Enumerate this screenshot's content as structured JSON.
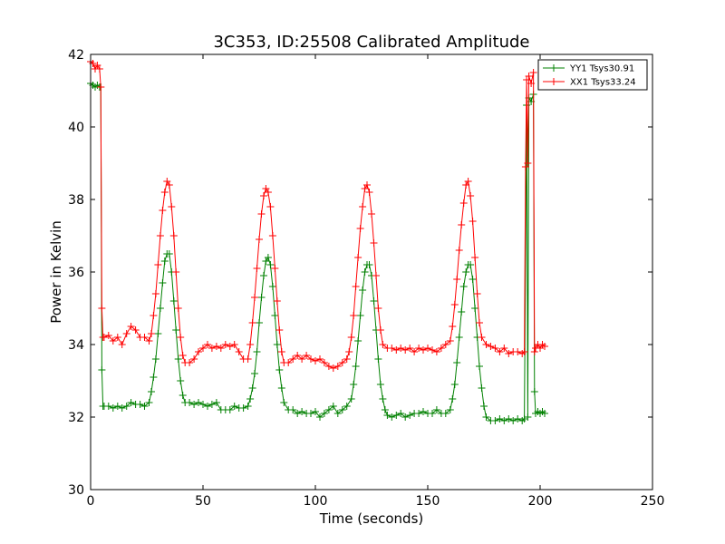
{
  "chart_data": {
    "type": "line",
    "title": "3C353, ID:25508 Calibrated Amplitude",
    "xlabel": "Time (seconds)",
    "ylabel": "Power in Kelvin",
    "xlim": [
      0,
      250
    ],
    "ylim": [
      30,
      42
    ],
    "xticks": [
      "0",
      "50",
      "100",
      "150",
      "200",
      "250"
    ],
    "yticks": [
      "30",
      "32",
      "34",
      "36",
      "38",
      "40",
      "42"
    ],
    "grid": false,
    "legend_position": "top-right",
    "marker": "+",
    "series": [
      {
        "name": "YY1 Tsys30.91",
        "color": "#008000",
        "points": [
          [
            0,
            41.2
          ],
          [
            1,
            41.15
          ],
          [
            2,
            41.1
          ],
          [
            3,
            41.15
          ],
          [
            4,
            41.1
          ],
          [
            4.5,
            41.1
          ],
          [
            5,
            33.3
          ],
          [
            5.5,
            32.3
          ],
          [
            6,
            32.3
          ],
          [
            8,
            32.3
          ],
          [
            10,
            32.25
          ],
          [
            12,
            32.3
          ],
          [
            14,
            32.25
          ],
          [
            16,
            32.3
          ],
          [
            18,
            32.4
          ],
          [
            20,
            32.35
          ],
          [
            22,
            32.35
          ],
          [
            24,
            32.3
          ],
          [
            26,
            32.4
          ],
          [
            27,
            32.7
          ],
          [
            28,
            33.1
          ],
          [
            29,
            33.6
          ],
          [
            30,
            34.3
          ],
          [
            31,
            35.0
          ],
          [
            32,
            35.7
          ],
          [
            33,
            36.3
          ],
          [
            34,
            36.5
          ],
          [
            35,
            36.5
          ],
          [
            36,
            36.0
          ],
          [
            37,
            35.2
          ],
          [
            38,
            34.4
          ],
          [
            39,
            33.6
          ],
          [
            40,
            33.0
          ],
          [
            41,
            32.6
          ],
          [
            42,
            32.4
          ],
          [
            44,
            32.4
          ],
          [
            46,
            32.35
          ],
          [
            48,
            32.4
          ],
          [
            50,
            32.35
          ],
          [
            52,
            32.3
          ],
          [
            54,
            32.35
          ],
          [
            56,
            32.4
          ],
          [
            58,
            32.2
          ],
          [
            60,
            32.2
          ],
          [
            62,
            32.2
          ],
          [
            64,
            32.3
          ],
          [
            66,
            32.25
          ],
          [
            68,
            32.25
          ],
          [
            70,
            32.3
          ],
          [
            71,
            32.5
          ],
          [
            72,
            32.8
          ],
          [
            73,
            33.2
          ],
          [
            74,
            33.8
          ],
          [
            75,
            34.6
          ],
          [
            76,
            35.3
          ],
          [
            77,
            35.9
          ],
          [
            78,
            36.3
          ],
          [
            79,
            36.4
          ],
          [
            80,
            36.2
          ],
          [
            81,
            35.6
          ],
          [
            82,
            34.8
          ],
          [
            83,
            34.0
          ],
          [
            84,
            33.3
          ],
          [
            85,
            32.8
          ],
          [
            86,
            32.4
          ],
          [
            88,
            32.2
          ],
          [
            90,
            32.2
          ],
          [
            92,
            32.1
          ],
          [
            94,
            32.15
          ],
          [
            96,
            32.1
          ],
          [
            98,
            32.1
          ],
          [
            100,
            32.15
          ],
          [
            102,
            32.0
          ],
          [
            104,
            32.1
          ],
          [
            106,
            32.2
          ],
          [
            108,
            32.3
          ],
          [
            110,
            32.1
          ],
          [
            112,
            32.2
          ],
          [
            114,
            32.3
          ],
          [
            116,
            32.5
          ],
          [
            117,
            32.9
          ],
          [
            118,
            33.4
          ],
          [
            119,
            34.1
          ],
          [
            120,
            34.8
          ],
          [
            121,
            35.5
          ],
          [
            122,
            36.0
          ],
          [
            123,
            36.2
          ],
          [
            124,
            36.2
          ],
          [
            125,
            35.9
          ],
          [
            126,
            35.2
          ],
          [
            127,
            34.4
          ],
          [
            128,
            33.6
          ],
          [
            129,
            32.9
          ],
          [
            130,
            32.5
          ],
          [
            131,
            32.2
          ],
          [
            132,
            32.05
          ],
          [
            134,
            32.0
          ],
          [
            136,
            32.05
          ],
          [
            138,
            32.1
          ],
          [
            140,
            32.0
          ],
          [
            142,
            32.05
          ],
          [
            144,
            32.1
          ],
          [
            146,
            32.1
          ],
          [
            148,
            32.15
          ],
          [
            150,
            32.1
          ],
          [
            152,
            32.1
          ],
          [
            154,
            32.2
          ],
          [
            156,
            32.1
          ],
          [
            158,
            32.1
          ],
          [
            160,
            32.2
          ],
          [
            161,
            32.5
          ],
          [
            162,
            32.9
          ],
          [
            163,
            33.5
          ],
          [
            164,
            34.2
          ],
          [
            165,
            34.9
          ],
          [
            166,
            35.6
          ],
          [
            167,
            36.0
          ],
          [
            168,
            36.2
          ],
          [
            169,
            36.2
          ],
          [
            170,
            35.8
          ],
          [
            171,
            35.0
          ],
          [
            172,
            34.2
          ],
          [
            173,
            33.4
          ],
          [
            174,
            32.8
          ],
          [
            175,
            32.3
          ],
          [
            176,
            32.0
          ],
          [
            178,
            31.9
          ],
          [
            180,
            31.9
          ],
          [
            182,
            31.95
          ],
          [
            184,
            31.9
          ],
          [
            186,
            31.95
          ],
          [
            188,
            31.9
          ],
          [
            190,
            31.95
          ],
          [
            192,
            31.9
          ],
          [
            193,
            31.95
          ],
          [
            194,
            40.6
          ],
          [
            194.5,
            32.0
          ],
          [
            195,
            40.8
          ],
          [
            196,
            40.7
          ],
          [
            197,
            40.9
          ],
          [
            197.5,
            32.7
          ],
          [
            198,
            32.1
          ],
          [
            199,
            32.15
          ],
          [
            200,
            32.1
          ],
          [
            201,
            32.15
          ],
          [
            202,
            32.1
          ]
        ]
      },
      {
        "name": "XX1 Tsys33.24",
        "color": "#ff0000",
        "points": [
          [
            0,
            41.8
          ],
          [
            1,
            41.75
          ],
          [
            2,
            41.6
          ],
          [
            3,
            41.7
          ],
          [
            4,
            41.6
          ],
          [
            4.5,
            41.1
          ],
          [
            5,
            35.0
          ],
          [
            5.5,
            34.2
          ],
          [
            6,
            34.2
          ],
          [
            8,
            34.25
          ],
          [
            10,
            34.1
          ],
          [
            12,
            34.2
          ],
          [
            14,
            34.0
          ],
          [
            16,
            34.3
          ],
          [
            18,
            34.5
          ],
          [
            20,
            34.4
          ],
          [
            22,
            34.2
          ],
          [
            24,
            34.2
          ],
          [
            26,
            34.1
          ],
          [
            27,
            34.3
          ],
          [
            28,
            34.8
          ],
          [
            29,
            35.4
          ],
          [
            30,
            36.2
          ],
          [
            31,
            37.0
          ],
          [
            32,
            37.7
          ],
          [
            33,
            38.2
          ],
          [
            34,
            38.5
          ],
          [
            35,
            38.4
          ],
          [
            36,
            37.8
          ],
          [
            37,
            37.0
          ],
          [
            38,
            36.0
          ],
          [
            39,
            35.0
          ],
          [
            40,
            34.2
          ],
          [
            41,
            33.7
          ],
          [
            42,
            33.5
          ],
          [
            44,
            33.5
          ],
          [
            46,
            33.6
          ],
          [
            48,
            33.8
          ],
          [
            50,
            33.9
          ],
          [
            52,
            34.0
          ],
          [
            54,
            33.9
          ],
          [
            56,
            33.95
          ],
          [
            58,
            33.9
          ],
          [
            60,
            34.0
          ],
          [
            62,
            33.95
          ],
          [
            64,
            34.0
          ],
          [
            66,
            33.8
          ],
          [
            68,
            33.6
          ],
          [
            70,
            33.6
          ],
          [
            71,
            34.0
          ],
          [
            72,
            34.6
          ],
          [
            73,
            35.3
          ],
          [
            74,
            36.1
          ],
          [
            75,
            36.9
          ],
          [
            76,
            37.6
          ],
          [
            77,
            38.1
          ],
          [
            78,
            38.3
          ],
          [
            79,
            38.2
          ],
          [
            80,
            37.8
          ],
          [
            81,
            37.0
          ],
          [
            82,
            36.1
          ],
          [
            83,
            35.2
          ],
          [
            84,
            34.4
          ],
          [
            85,
            33.8
          ],
          [
            86,
            33.5
          ],
          [
            88,
            33.5
          ],
          [
            90,
            33.6
          ],
          [
            92,
            33.7
          ],
          [
            94,
            33.6
          ],
          [
            96,
            33.7
          ],
          [
            98,
            33.6
          ],
          [
            100,
            33.55
          ],
          [
            102,
            33.6
          ],
          [
            104,
            33.5
          ],
          [
            106,
            33.4
          ],
          [
            108,
            33.35
          ],
          [
            110,
            33.4
          ],
          [
            112,
            33.5
          ],
          [
            114,
            33.6
          ],
          [
            115,
            33.8
          ],
          [
            116,
            34.2
          ],
          [
            117,
            34.8
          ],
          [
            118,
            35.6
          ],
          [
            119,
            36.4
          ],
          [
            120,
            37.2
          ],
          [
            121,
            37.8
          ],
          [
            122,
            38.3
          ],
          [
            123,
            38.4
          ],
          [
            124,
            38.2
          ],
          [
            125,
            37.6
          ],
          [
            126,
            36.8
          ],
          [
            127,
            35.9
          ],
          [
            128,
            35.0
          ],
          [
            129,
            34.4
          ],
          [
            130,
            34.0
          ],
          [
            132,
            33.9
          ],
          [
            134,
            33.9
          ],
          [
            136,
            33.85
          ],
          [
            138,
            33.9
          ],
          [
            140,
            33.85
          ],
          [
            142,
            33.9
          ],
          [
            144,
            33.8
          ],
          [
            146,
            33.9
          ],
          [
            148,
            33.85
          ],
          [
            150,
            33.9
          ],
          [
            152,
            33.85
          ],
          [
            154,
            33.8
          ],
          [
            156,
            33.9
          ],
          [
            158,
            34.0
          ],
          [
            160,
            34.1
          ],
          [
            161,
            34.5
          ],
          [
            162,
            35.1
          ],
          [
            163,
            35.8
          ],
          [
            164,
            36.6
          ],
          [
            165,
            37.3
          ],
          [
            166,
            37.9
          ],
          [
            167,
            38.4
          ],
          [
            168,
            38.5
          ],
          [
            169,
            38.1
          ],
          [
            170,
            37.4
          ],
          [
            171,
            36.4
          ],
          [
            172,
            35.4
          ],
          [
            173,
            34.6
          ],
          [
            174,
            34.2
          ],
          [
            176,
            34.0
          ],
          [
            178,
            33.95
          ],
          [
            180,
            33.9
          ],
          [
            182,
            33.8
          ],
          [
            184,
            33.9
          ],
          [
            186,
            33.75
          ],
          [
            188,
            33.8
          ],
          [
            190,
            33.8
          ],
          [
            192,
            33.75
          ],
          [
            193,
            33.8
          ],
          [
            193.5,
            38.9
          ],
          [
            194,
            41.3
          ],
          [
            194.5,
            39.0
          ],
          [
            195,
            41.4
          ],
          [
            196,
            41.2
          ],
          [
            197,
            41.5
          ],
          [
            197.5,
            33.8
          ],
          [
            198,
            33.9
          ],
          [
            199,
            34.0
          ],
          [
            200,
            33.9
          ],
          [
            201,
            34.0
          ],
          [
            202,
            33.95
          ]
        ]
      }
    ]
  }
}
